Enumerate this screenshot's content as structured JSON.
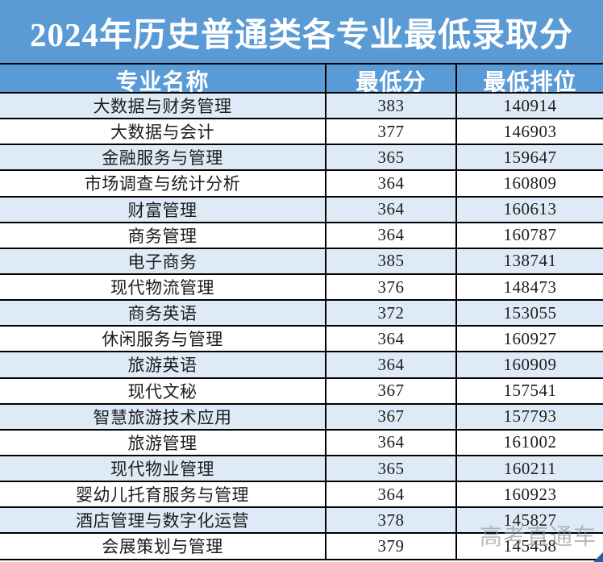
{
  "title": "2024年历史普通类各专业最低录取分",
  "watermark": "高考直通车",
  "colors": {
    "header_blue": "#5b9bd5",
    "stripe_light_blue": "#deebf7",
    "row_white": "#ffffff",
    "grid_border": "#000000",
    "title_text": "#ffffff",
    "cell_text": "#1c1c1c",
    "watermark_gray": "#8f979e",
    "corner_handle_blue": "#2e5b9f"
  },
  "chart_data": {
    "type": "table",
    "title": "2024年历史普通类各专业最低录取分",
    "columns": [
      "专业名称",
      "最低分",
      "最低排位"
    ],
    "rows": [
      [
        "大数据与财务管理",
        "383",
        "140914"
      ],
      [
        "大数据与会计",
        "377",
        "146903"
      ],
      [
        "金融服务与管理",
        "365",
        "159647"
      ],
      [
        "市场调查与统计分析",
        "364",
        "160809"
      ],
      [
        "财富管理",
        "364",
        "160613"
      ],
      [
        "商务管理",
        "364",
        "160787"
      ],
      [
        "电子商务",
        "385",
        "138741"
      ],
      [
        "现代物流管理",
        "376",
        "148473"
      ],
      [
        "商务英语",
        "372",
        "153055"
      ],
      [
        "休闲服务与管理",
        "364",
        "160927"
      ],
      [
        "旅游英语",
        "364",
        "160909"
      ],
      [
        "现代文秘",
        "367",
        "157541"
      ],
      [
        "智慧旅游技术应用",
        "367",
        "157793"
      ],
      [
        "旅游管理",
        "364",
        "161002"
      ],
      [
        "现代物业管理",
        "365",
        "160211"
      ],
      [
        "婴幼儿托育服务与管理",
        "364",
        "160923"
      ],
      [
        "酒店管理与数字化运营",
        "378",
        "145827"
      ],
      [
        "会展策划与管理",
        "379",
        "145458"
      ]
    ]
  }
}
